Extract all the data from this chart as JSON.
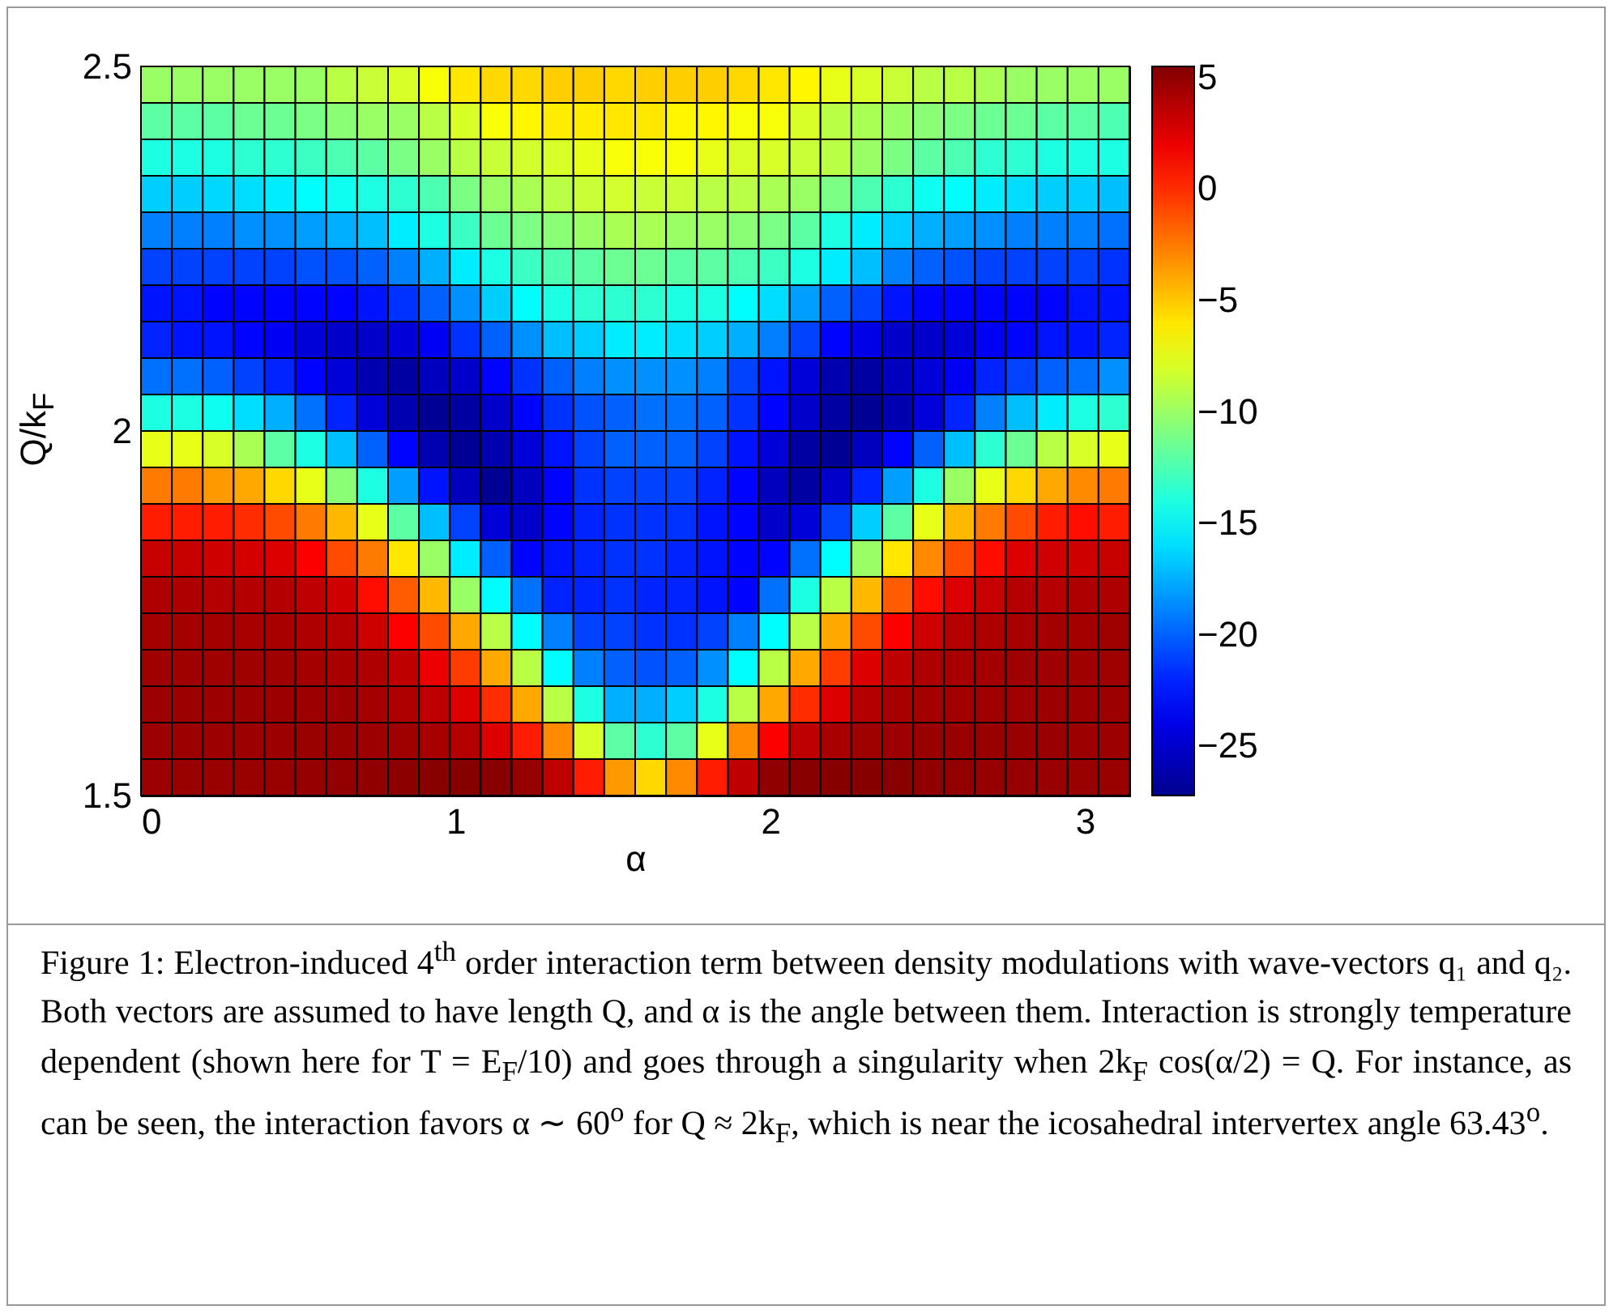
{
  "chart_data": {
    "type": "heatmap",
    "xlabel": "α",
    "ylabel": "Q/k$_{F}$",
    "xlim": [
      0,
      3.1416
    ],
    "xticks": [
      0,
      1,
      2,
      3
    ],
    "ylim": [
      1.5,
      2.5
    ],
    "yticks": [
      1.5,
      2,
      2.5
    ],
    "clim": [
      -27.2,
      5.5
    ],
    "cticks": [
      -25,
      -20,
      -15,
      -10,
      -5,
      0,
      5
    ],
    "cells": [
      [
        -10,
        -10,
        -10,
        -10,
        -10,
        -10,
        -9,
        -8.5,
        -8,
        -7,
        -6,
        -5.5,
        -5.5,
        -5.2,
        -5.2,
        -5.5,
        -5.2,
        -5.2,
        -5.2,
        -5.5,
        -6,
        -6.5,
        -7.5,
        -8,
        -8.5,
        -9,
        -9,
        -9.5,
        -10,
        -10,
        -10,
        -10
      ],
      [
        -12,
        -12,
        -12,
        -11.5,
        -11.5,
        -11,
        -10.5,
        -10,
        -10,
        -9,
        -8,
        -7,
        -6.5,
        -6.2,
        -6.2,
        -6,
        -6,
        -6.5,
        -6.5,
        -7,
        -7,
        -8,
        -9,
        -9.5,
        -10,
        -10.5,
        -11,
        -11.5,
        -11.5,
        -12,
        -12,
        -12.5
      ],
      [
        -14,
        -14,
        -14,
        -13.5,
        -13.5,
        -13,
        -12.5,
        -12,
        -11,
        -10,
        -9,
        -8.5,
        -8.2,
        -8,
        -7.5,
        -7,
        -7,
        -7,
        -7.5,
        -8,
        -8,
        -8.5,
        -9,
        -10,
        -11,
        -12,
        -12.5,
        -13.5,
        -13.5,
        -14,
        -14,
        -14
      ],
      [
        -16.5,
        -16.5,
        -16.2,
        -16,
        -15.5,
        -15,
        -14.5,
        -14,
        -13.5,
        -12.5,
        -11,
        -10,
        -9.5,
        -9,
        -8.5,
        -8.2,
        -8.5,
        -8.5,
        -9,
        -9,
        -9.5,
        -10,
        -11,
        -12.5,
        -13.5,
        -14.5,
        -15,
        -15.5,
        -16,
        -16.5,
        -16.5,
        -17
      ],
      [
        -19,
        -19,
        -19,
        -18.5,
        -18.5,
        -18,
        -17.5,
        -17,
        -15.5,
        -14,
        -13,
        -11.5,
        -11,
        -10.5,
        -10,
        -9.5,
        -9.5,
        -10,
        -10,
        -10.5,
        -11,
        -12,
        -14,
        -15.5,
        -16.5,
        -17.5,
        -18,
        -18.5,
        -19,
        -19,
        -19,
        -19.5
      ],
      [
        -21,
        -21,
        -21,
        -21,
        -21,
        -20.5,
        -20.5,
        -20,
        -19,
        -17.5,
        -15.5,
        -14,
        -13,
        -12.5,
        -12,
        -11.5,
        -11.5,
        -12,
        -12,
        -12.5,
        -13,
        -14,
        -15.5,
        -17,
        -19,
        -20,
        -20.5,
        -21,
        -21,
        -21,
        -21,
        -21.5
      ],
      [
        -22.5,
        -22.5,
        -23,
        -23,
        -23,
        -23,
        -23,
        -22.5,
        -21.5,
        -20,
        -18.5,
        -16.5,
        -15,
        -14,
        -13.5,
        -13.5,
        -13.5,
        -14,
        -14,
        -15,
        -16,
        -18,
        -20,
        -21,
        -22.5,
        -23,
        -23,
        -23,
        -23,
        -23,
        -22.5,
        -22.5
      ],
      [
        -22,
        -22.5,
        -22.5,
        -23,
        -23.5,
        -24.5,
        -25,
        -25,
        -24.5,
        -23.5,
        -21.5,
        -20,
        -18.5,
        -17,
        -16.5,
        -15.5,
        -15.5,
        -16,
        -16.5,
        -17.5,
        -19,
        -21,
        -23,
        -24,
        -25,
        -25,
        -24.5,
        -23.5,
        -23,
        -22.5,
        -22.5,
        -22
      ],
      [
        -19.5,
        -19.5,
        -20,
        -21,
        -22,
        -23,
        -24.5,
        -26,
        -26.5,
        -25.5,
        -25,
        -23,
        -21.5,
        -20,
        -19,
        -18.5,
        -18.5,
        -18.5,
        -19,
        -21,
        -22.5,
        -24.5,
        -26,
        -26.5,
        -25.5,
        -24.5,
        -23.5,
        -22,
        -21,
        -20,
        -19.5,
        -18.5
      ],
      [
        -14,
        -14,
        -14.5,
        -16,
        -17.5,
        -19.5,
        -22,
        -24.5,
        -26,
        -27,
        -26.5,
        -25,
        -23,
        -21.5,
        -20.5,
        -20,
        -19.5,
        -19.5,
        -20,
        -21.5,
        -23,
        -25,
        -26.5,
        -27,
        -26,
        -24.5,
        -22,
        -19,
        -17,
        -15.5,
        -14,
        -13.5
      ],
      [
        -7.5,
        -7.5,
        -8,
        -9.5,
        -12,
        -14,
        -17,
        -20,
        -23,
        -26,
        -27,
        -26,
        -24.5,
        -22.5,
        -21,
        -20,
        -20,
        -20,
        -21,
        -22.5,
        -24.5,
        -26.5,
        -27,
        -25.5,
        -23,
        -20,
        -17,
        -13.5,
        -11.5,
        -9,
        -8,
        -7.5
      ],
      [
        -2.5,
        -2.5,
        -3.5,
        -4,
        -5.5,
        -7.5,
        -10.5,
        -14,
        -18,
        -22.5,
        -25.5,
        -27,
        -25.5,
        -23,
        -21.5,
        -21,
        -21,
        -21,
        -22,
        -23,
        -25.5,
        -26.5,
        -25,
        -22,
        -18,
        -14,
        -10,
        -7.5,
        -5.5,
        -4,
        -3,
        -2.5
      ],
      [
        0.5,
        0.5,
        0.5,
        0,
        -1,
        -2.5,
        -4.5,
        -7.5,
        -12,
        -17,
        -21,
        -24.5,
        -25,
        -23,
        -22,
        -21.5,
        -21.5,
        -21.5,
        -22.5,
        -23,
        -25,
        -24.5,
        -21,
        -16.5,
        -12,
        -7.5,
        -4.5,
        -2.5,
        -1,
        0.5,
        1,
        0.5
      ],
      [
        3.2,
        3.2,
        3,
        2.8,
        2.5,
        1.5,
        -1,
        -2.5,
        -6,
        -10,
        -15.5,
        -20,
        -23,
        -22.5,
        -22,
        -21.5,
        -21.5,
        -22,
        -22.5,
        -23,
        -23,
        -19.5,
        -15,
        -10,
        -6,
        -3,
        -1,
        1,
        2.5,
        3,
        3,
        3.2
      ],
      [
        4,
        4,
        3.8,
        3.8,
        3.8,
        3.5,
        3,
        1,
        -1.5,
        -4.5,
        -10,
        -15,
        -19.5,
        -22,
        -22,
        -21.5,
        -22,
        -22,
        -22.5,
        -23,
        -19.5,
        -14,
        -9,
        -4.5,
        -1.5,
        1,
        2.5,
        3.2,
        3.8,
        3.8,
        4,
        4
      ],
      [
        4.3,
        4.3,
        4.3,
        4.2,
        4.2,
        4,
        3.8,
        3,
        1.5,
        -1,
        -4,
        -9,
        -15,
        -19,
        -21,
        -21,
        -21.5,
        -21.5,
        -21,
        -19,
        -15,
        -9,
        -4,
        -1,
        1.5,
        3,
        3.8,
        4,
        4.2,
        4.3,
        4.3,
        4.5
      ],
      [
        4.5,
        4.5,
        4.5,
        4.5,
        4.5,
        4.3,
        4.2,
        4,
        3.5,
        2,
        -0.5,
        -4,
        -9,
        -15,
        -19,
        -20,
        -20.5,
        -20,
        -18.5,
        -15,
        -9,
        -4,
        -0.5,
        2.5,
        3.5,
        4,
        4.2,
        4.3,
        4.5,
        4.5,
        4.5,
        4.5
      ],
      [
        4.6,
        4.6,
        4.6,
        4.6,
        4.6,
        4.6,
        4.6,
        4.3,
        4,
        3.5,
        2.5,
        0,
        -4,
        -9,
        -14,
        -17.5,
        -17.5,
        -16.5,
        -14,
        -9,
        -4,
        0,
        2.5,
        3.8,
        4.2,
        4.3,
        4.4,
        4.5,
        4.5,
        4.6,
        4.6,
        4.6
      ],
      [
        4.6,
        4.6,
        4.6,
        4.6,
        4.6,
        4.7,
        4.7,
        4.6,
        4.5,
        4.2,
        3.8,
        2.5,
        0.5,
        -3,
        -8,
        -12,
        -13.5,
        -12,
        -7.5,
        -3,
        1.5,
        3.5,
        4.2,
        4.5,
        4.6,
        4.7,
        4.7,
        4.7,
        4.7,
        4.7,
        4.6,
        4.6
      ],
      [
        4.6,
        4.7,
        4.7,
        4.7,
        4.7,
        4.8,
        4.9,
        5,
        5.1,
        5.2,
        5.3,
        5.2,
        4.8,
        3.5,
        0.5,
        -3.5,
        -5.5,
        -3,
        0.5,
        3.5,
        5,
        5.2,
        5.3,
        5.3,
        5.2,
        5,
        4.9,
        4.8,
        4.8,
        4.7,
        4.7,
        4.7
      ]
    ],
    "annotations": [
      "Figure 1: Electron-induced 4$^{th}$ order interaction term between density modulations with wave-vectors q₁ and q₂. Both vectors are assumed to have length Q, and α is the angle between them. Interaction is strongly temperature dependent (shown here for T = E$_{F}$/10) and goes through a singularity when 2k$_{F}$ cos(α/2) = Q. For instance, as can be seen, the interaction favors α ∼ 60$^{o}$ for Q ≈ 2k$_{F}$, which is near the icosahedral intervertex angle 63.43$^{o}$."
    ]
  }
}
